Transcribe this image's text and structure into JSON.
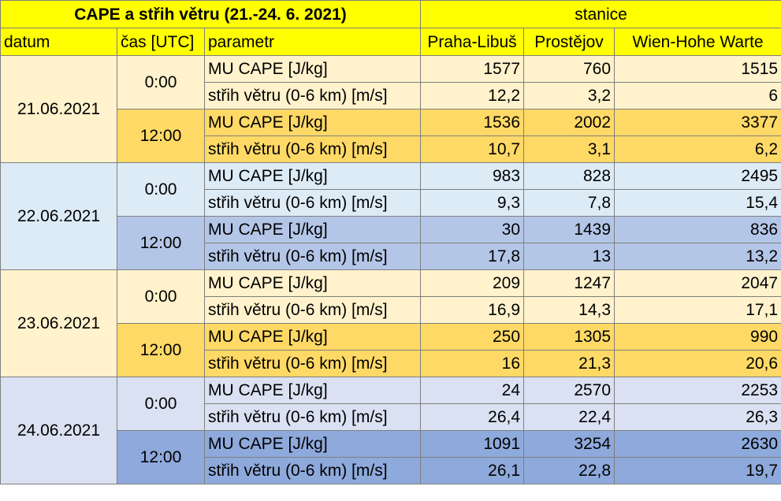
{
  "title": "CAPE a střih větru (21.-24. 6. 2021)",
  "stations_label": "stanice",
  "headers": {
    "date": "datum",
    "time": "čas [UTC]",
    "param": "parametr",
    "stations": [
      "Praha-Libuš",
      "Prostějov",
      "Wien-Hohe Warte"
    ]
  },
  "param_labels": {
    "cape": "MU CAPE [J/kg]",
    "shear": "střih větru (0-6 km) [m/s]"
  },
  "days": [
    {
      "date": "21.06.2021",
      "times": [
        {
          "time": "0:00",
          "cape": [
            "1577",
            "760",
            "1515"
          ],
          "shear": [
            "12,2",
            "3,2",
            "6"
          ]
        },
        {
          "time": "12:00",
          "cape": [
            "1536",
            "2002",
            "3377"
          ],
          "shear": [
            "10,7",
            "3,1",
            "6,2"
          ]
        }
      ]
    },
    {
      "date": "22.06.2021",
      "times": [
        {
          "time": "0:00",
          "cape": [
            "983",
            "828",
            "2495"
          ],
          "shear": [
            "9,3",
            "7,8",
            "15,4"
          ]
        },
        {
          "time": "12:00",
          "cape": [
            "30",
            "1439",
            "836"
          ],
          "shear": [
            "17,8",
            "13",
            "13,2"
          ]
        }
      ]
    },
    {
      "date": "23.06.2021",
      "times": [
        {
          "time": "0:00",
          "cape": [
            "209",
            "1247",
            "2047"
          ],
          "shear": [
            "16,9",
            "14,3",
            "17,1"
          ]
        },
        {
          "time": "12:00",
          "cape": [
            "250",
            "1305",
            "990"
          ],
          "shear": [
            "16",
            "21,3",
            "20,6"
          ]
        }
      ]
    },
    {
      "date": "24.06.2021",
      "times": [
        {
          "time": "0:00",
          "cape": [
            "24",
            "2570",
            "2253"
          ],
          "shear": [
            "26,4",
            "22,4",
            "26,3"
          ]
        },
        {
          "time": "12:00",
          "cape": [
            "1091",
            "3254",
            "2630"
          ],
          "shear": [
            "26,1",
            "22,8",
            "19,7"
          ]
        }
      ]
    }
  ],
  "colors": {
    "header_yellow": "#ffff00",
    "day1_light": "#fff2cc",
    "day1_dark": "#ffd966",
    "day2_light": "#ddebf7",
    "day2_dark": "#b4c6e7",
    "day3_light": "#fff2cc",
    "day3_dark": "#ffd966",
    "day4_light": "#d9e1f2",
    "day4_dark": "#8ea9db"
  }
}
